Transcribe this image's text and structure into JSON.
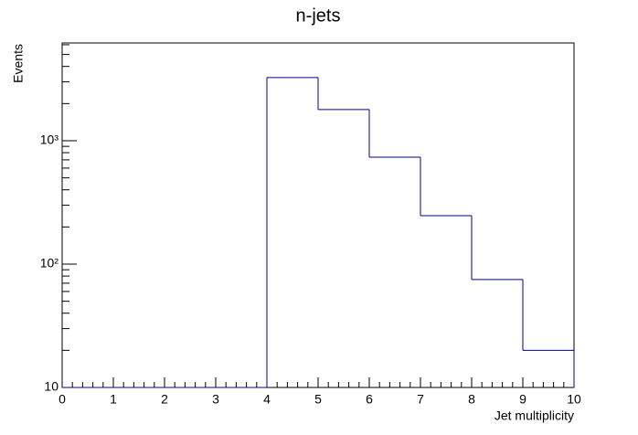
{
  "chart_data": {
    "type": "histogram",
    "title": "n-jets",
    "x_label": "Jet multiplicity",
    "y_label": "Events",
    "bins": [
      0,
      1,
      2,
      3,
      4,
      5,
      6,
      7,
      8,
      9,
      10
    ],
    "values": [
      0,
      0,
      0,
      0,
      3250,
      1790,
      735,
      247,
      75,
      20
    ],
    "color": "#000099",
    "xlim": [
      0,
      10
    ],
    "xticks": [
      0,
      1,
      2,
      3,
      4,
      5,
      6,
      7,
      8,
      9,
      10
    ],
    "ylim": [
      10,
      6200
    ],
    "log_y": true,
    "yticks": [
      10,
      {
        "value": 100,
        "label": "10²"
      },
      {
        "value": 1000,
        "label": "10³"
      }
    ]
  }
}
